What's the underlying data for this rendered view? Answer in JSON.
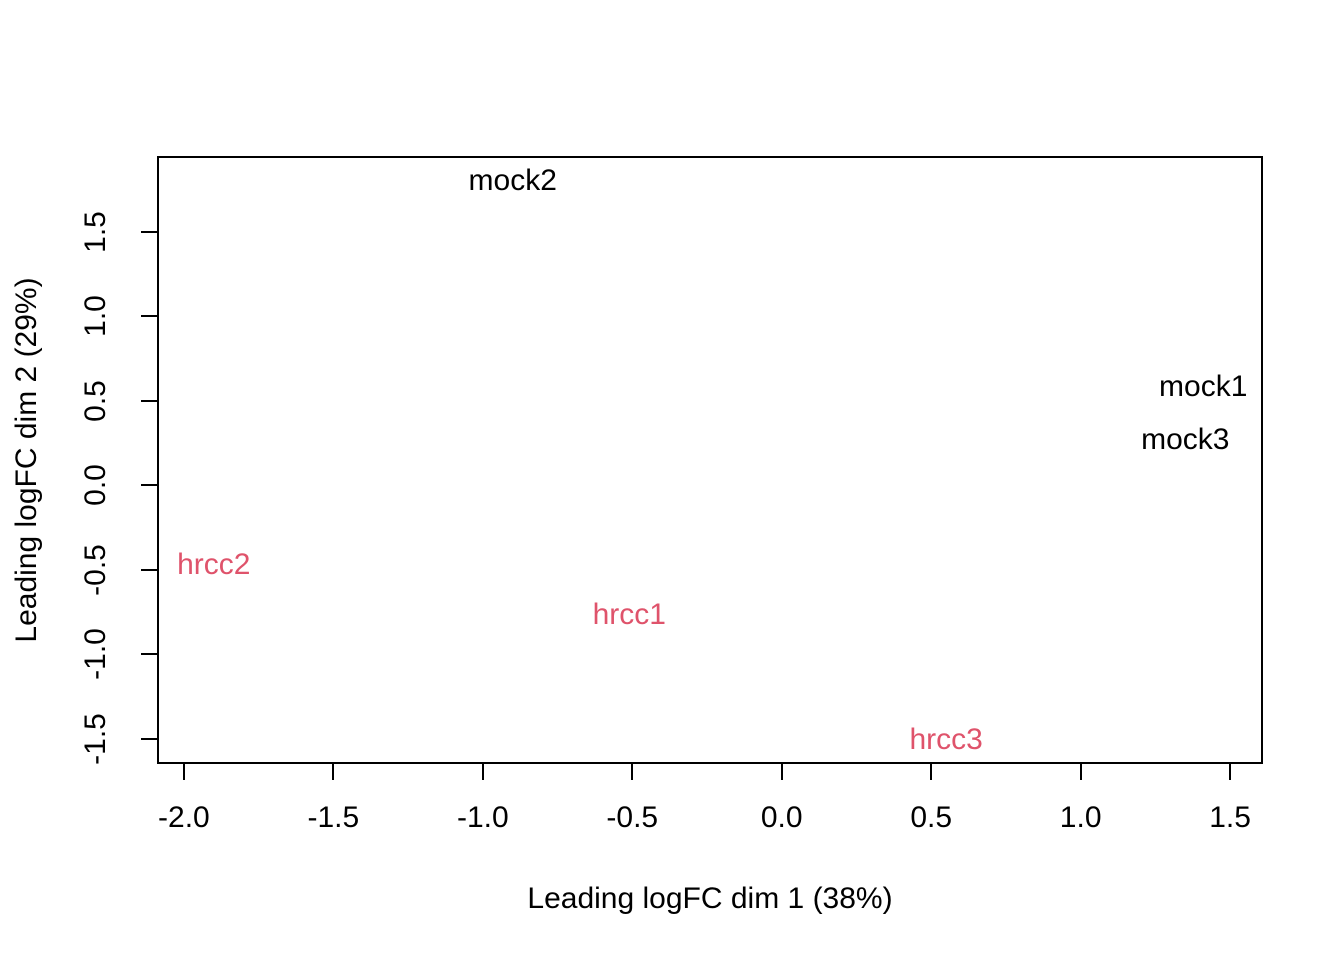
{
  "figure": {
    "background": "#ffffff",
    "frame_color": "#000000"
  },
  "chart_data": {
    "type": "scatter",
    "subtype": "mds-text-label-plot",
    "title": "",
    "xlabel": "Leading logFC dim 1 (38%)",
    "ylabel": "Leading logFC dim 2 (29%)",
    "xlim": [
      -2.09,
      1.61
    ],
    "ylim": [
      -1.65,
      1.95
    ],
    "grid": false,
    "legend_position": "none",
    "point_style": "text-labels",
    "x_ticks": {
      "values": [
        -2.0,
        -1.5,
        -1.0,
        -0.5,
        0.0,
        0.5,
        1.0,
        1.5
      ],
      "labels": [
        "-2.0",
        "-1.5",
        "-1.0",
        "-0.5",
        "0.0",
        "0.5",
        "1.0",
        "1.5"
      ]
    },
    "y_ticks": {
      "values": [
        -1.5,
        -1.0,
        -0.5,
        0.0,
        0.5,
        1.0,
        1.5
      ],
      "labels": [
        "-1.5",
        "-1.0",
        "-0.5",
        "0.0",
        "0.5",
        "1.0",
        "1.5"
      ]
    },
    "series": [
      {
        "name": "mock",
        "color": "#000000",
        "points": [
          {
            "label": "mock1",
            "x": 1.41,
            "y": 0.58
          },
          {
            "label": "mock2",
            "x": -0.9,
            "y": 1.8
          },
          {
            "label": "mock3",
            "x": 1.35,
            "y": 0.27
          }
        ]
      },
      {
        "name": "hrcc",
        "color": "#DF536B",
        "points": [
          {
            "label": "hrcc1",
            "x": -0.51,
            "y": -0.77
          },
          {
            "label": "hrcc2",
            "x": -1.9,
            "y": -0.47
          },
          {
            "label": "hrcc3",
            "x": 0.55,
            "y": -1.51
          }
        ]
      }
    ]
  }
}
